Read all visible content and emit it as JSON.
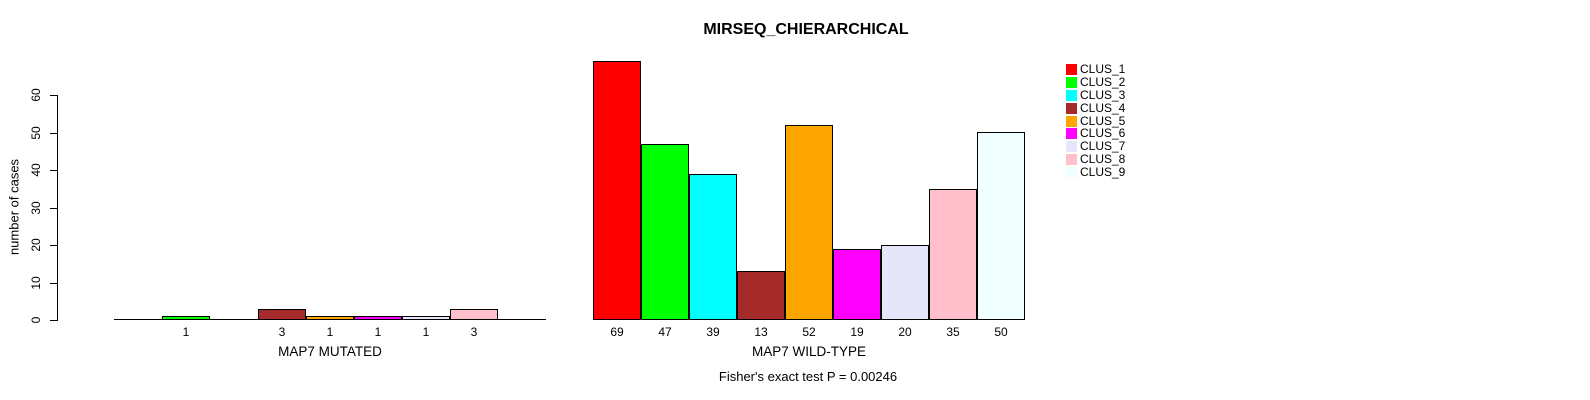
{
  "chart_data": {
    "type": "bar",
    "title": "MIRSEQ_CHIERARCHICAL",
    "ylabel": "number of cases",
    "ylim": [
      0,
      60
    ],
    "yticks": [
      0,
      10,
      20,
      30,
      40,
      50,
      60
    ],
    "grid": false,
    "legend": {
      "position": "right",
      "entries": [
        {
          "label": "CLUS_1",
          "color": "#FF0000"
        },
        {
          "label": "CLUS_2",
          "color": "#00FF00"
        },
        {
          "label": "CLUS_3",
          "color": "#00FFFF"
        },
        {
          "label": "CLUS_4",
          "color": "#A52A2A"
        },
        {
          "label": "CLUS_5",
          "color": "#FFA500"
        },
        {
          "label": "CLUS_6",
          "color": "#FF00FF"
        },
        {
          "label": "CLUS_7",
          "color": "#E6E6FA"
        },
        {
          "label": "CLUS_8",
          "color": "#FFC0CB"
        },
        {
          "label": "CLUS_9",
          "color": "#F0FFFF"
        }
      ]
    },
    "groups": [
      {
        "xlabel": "MAP7 MUTATED",
        "categories": [
          "CLUS_1",
          "CLUS_2",
          "CLUS_3",
          "CLUS_4",
          "CLUS_5",
          "CLUS_6",
          "CLUS_7",
          "CLUS_8",
          "CLUS_9"
        ],
        "values": [
          0,
          1,
          0,
          3,
          1,
          1,
          1,
          3,
          0
        ],
        "bar_labels": [
          "",
          "1",
          "",
          "3",
          "1",
          "1",
          "1",
          "3",
          ""
        ]
      },
      {
        "xlabel": "MAP7 WILD-TYPE",
        "categories": [
          "CLUS_1",
          "CLUS_2",
          "CLUS_3",
          "CLUS_4",
          "CLUS_5",
          "CLUS_6",
          "CLUS_7",
          "CLUS_8",
          "CLUS_9"
        ],
        "values": [
          69,
          47,
          39,
          13,
          52,
          19,
          20,
          35,
          50
        ],
        "bar_labels": [
          "69",
          "47",
          "39",
          "13",
          "52",
          "19",
          "20",
          "35",
          "50"
        ]
      }
    ],
    "annotation": "Fisher's exact test P = 0.00246",
    "axis_color": "#000000",
    "bar_border_color": "#000000"
  }
}
